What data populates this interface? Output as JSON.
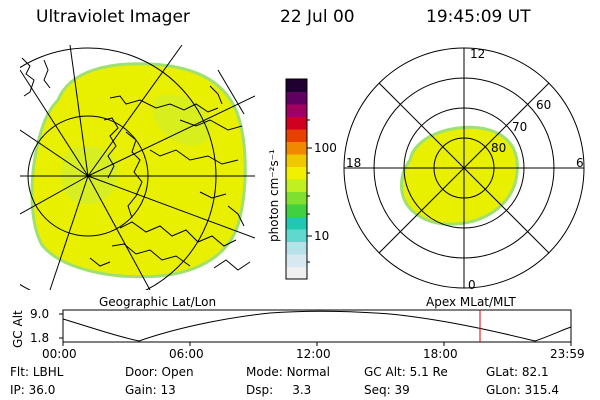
{
  "header": {
    "instrument": "Ultraviolet Imager",
    "date": "22 Jul 00",
    "time": "19:45:09 UT"
  },
  "colorbar": {
    "unit_label": "photon cm⁻²s⁻¹",
    "ticks": [
      "100",
      "10"
    ],
    "colors": [
      "#f0f0f0",
      "#d8e8f0",
      "#b8e0e8",
      "#60d8d0",
      "#20c8b0",
      "#40d040",
      "#80e030",
      "#c0f020",
      "#f0f000",
      "#f0c800",
      "#f08800",
      "#e84000",
      "#d00020",
      "#a00060",
      "#600060",
      "#200030"
    ]
  },
  "geo_panel": {
    "caption": "Geographic Lat/Lon",
    "image_colors": {
      "fill": "#e8f000",
      "edge": "#a0e070",
      "patch": "#c8ec40"
    }
  },
  "mlt_panel": {
    "caption": "Apex MLat/MLT",
    "mlt_labels": {
      "top": "12",
      "left": "18",
      "right": "6",
      "bottom": "0"
    },
    "lat_labels": [
      "60",
      "70",
      "80"
    ]
  },
  "altitude_plot": {
    "ylabel": "GC Alt",
    "y_ticks": [
      "9.0",
      "1.8"
    ],
    "x_ticks": [
      "00:00",
      "06:00",
      "12:00",
      "18:00",
      "23:59"
    ],
    "marker_color": "#e00000"
  },
  "status": {
    "row1": [
      {
        "label": "Flt:",
        "value": "LBHL"
      },
      {
        "label": "Door:",
        "value": "Open"
      },
      {
        "label": "Mode:",
        "value": "Normal"
      },
      {
        "label": "GC Alt:",
        "value": "5.1 Re"
      },
      {
        "label": "GLat:",
        "value": "82.1"
      }
    ],
    "row2": [
      {
        "label": "IP:",
        "value": "36.0"
      },
      {
        "label": "Gain:",
        "value": "13"
      },
      {
        "label": "Dsp:",
        "value": "3.3"
      },
      {
        "label": "Seq:",
        "value": "39"
      },
      {
        "label": "GLon:",
        "value": "315.4"
      }
    ]
  }
}
